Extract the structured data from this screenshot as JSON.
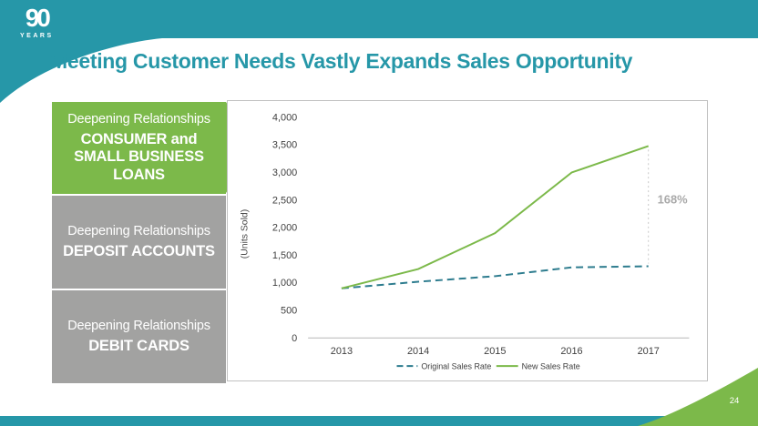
{
  "slide": {
    "logo": {
      "number": "90",
      "caption": "YEARS"
    },
    "title": "Meeting Customer Needs Vastly Expands Sales Opportunity",
    "page_number": "24"
  },
  "panels": [
    {
      "eyebrow": "Deepening Relationships",
      "lines": [
        "CONSUMER and",
        "SMALL BUSINESS LOANS"
      ]
    },
    {
      "eyebrow": "Deepening Relationships",
      "lines": [
        "DEPOSIT ACCOUNTS"
      ]
    },
    {
      "eyebrow": "Deepening Relationships",
      "lines": [
        "DEBIT CARDS"
      ]
    }
  ],
  "colors": {
    "teal": "#2697a8",
    "green": "#7cb94a",
    "gray": "#a2a2a1",
    "border_gray": "#c0c0c0",
    "text_dark": "#3f3f3f",
    "annot_gray": "#a9a9a9"
  },
  "chart_data": {
    "type": "line",
    "x": [
      "2013",
      "2014",
      "2015",
      "2016",
      "2017"
    ],
    "series": [
      {
        "name": "Original Sales Rate",
        "values": [
          900,
          1020,
          1120,
          1280,
          1300
        ],
        "color": "#2d7c8e",
        "dash": true
      },
      {
        "name": "New Sales Rate",
        "values": [
          900,
          1250,
          1900,
          3000,
          3480
        ],
        "color": "#7cb94a",
        "dash": false
      }
    ],
    "ylabel": "(Units Sold)",
    "ylim": [
      0,
      4000
    ],
    "ytick_step": 500,
    "yticks": [
      "4,000",
      "3,500",
      "3,000",
      "2,500",
      "2,000",
      "1,500",
      "1,000",
      "500",
      "0"
    ],
    "annotation": {
      "text": "168%"
    },
    "legend_position": "bottom",
    "grid": false
  }
}
